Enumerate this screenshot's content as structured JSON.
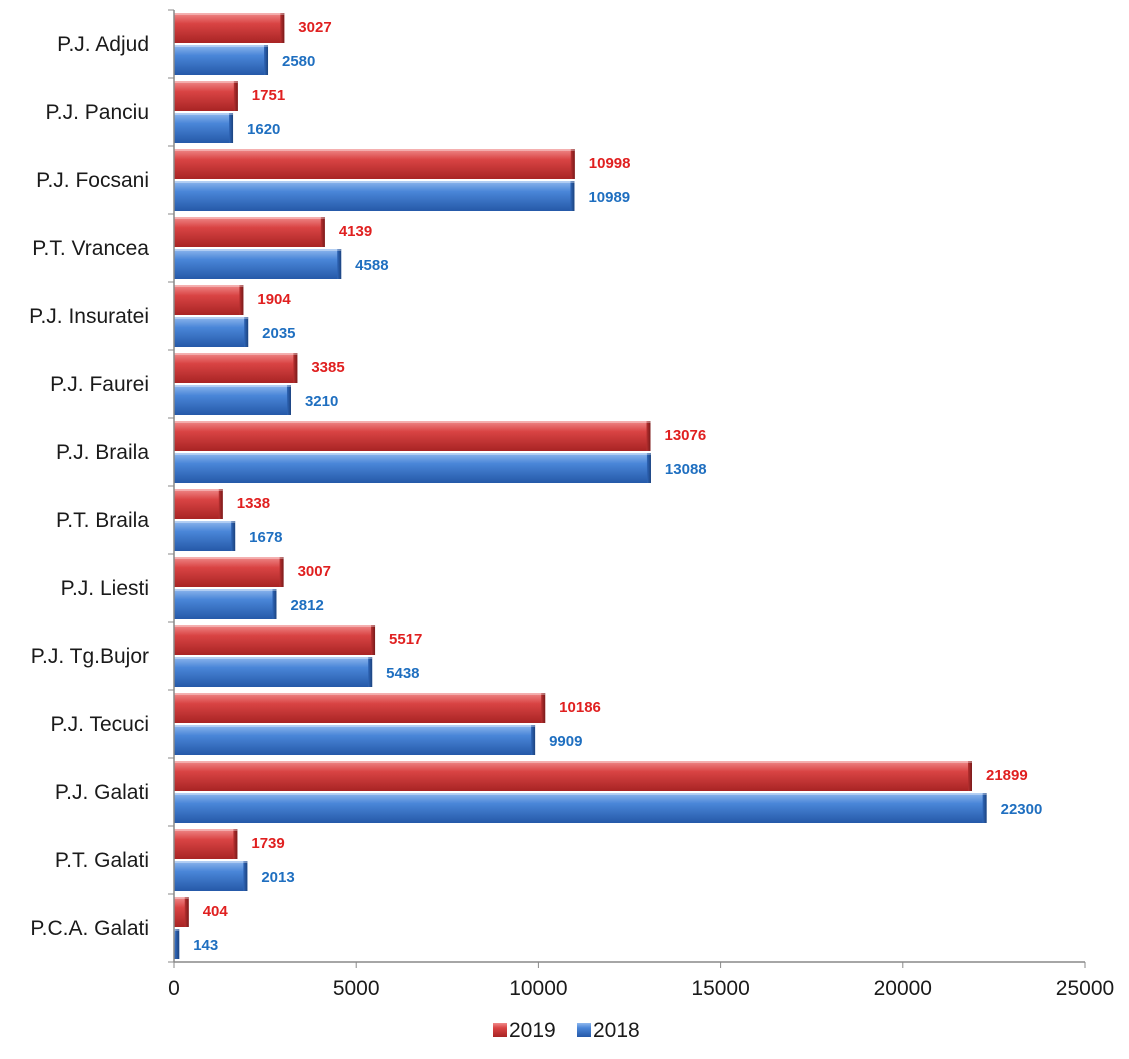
{
  "chart_data": {
    "type": "bar",
    "orientation": "horizontal",
    "categories": [
      "P.J. Adjud",
      "P.J. Panciu",
      "P.J. Focsani",
      "P.T. Vrancea",
      "P.J. Insuratei",
      "P.J. Faurei",
      "P.J. Braila",
      "P.T. Braila",
      "P.J. Liesti",
      "P.J. Tg.Bujor",
      "P.J. Tecuci",
      "P.J. Galati",
      "P.T. Galati",
      "P.C.A. Galati"
    ],
    "series": [
      {
        "name": "2019",
        "color": "#d43a3a",
        "label_color": "#e02020",
        "values": [
          3027,
          1751,
          10998,
          4139,
          1904,
          3385,
          13076,
          1338,
          3007,
          5517,
          10186,
          21899,
          1739,
          404
        ]
      },
      {
        "name": "2018",
        "color": "#3a78d0",
        "label_color": "#1f6fc0",
        "values": [
          2580,
          1620,
          10989,
          4588,
          2035,
          3210,
          13088,
          1678,
          2812,
          5438,
          9909,
          22300,
          2013,
          143
        ]
      }
    ],
    "xlim": [
      0,
      25000
    ],
    "x_ticks": [
      "0",
      "5000",
      "10000",
      "15000",
      "20000",
      "25000"
    ],
    "grid": false,
    "legend_position": "bottom",
    "title": "",
    "xlabel": "",
    "ylabel": ""
  }
}
